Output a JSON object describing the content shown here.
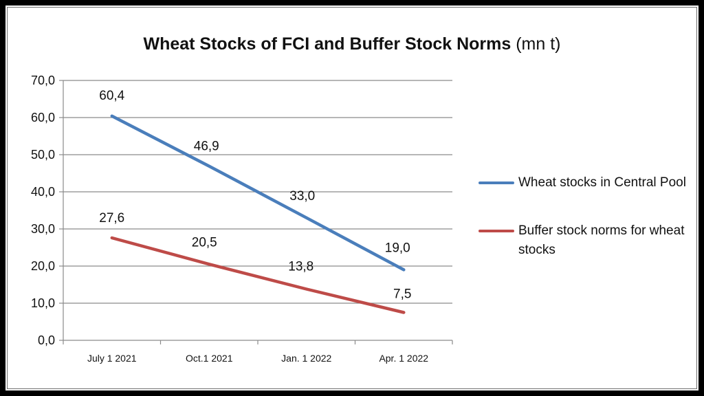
{
  "chart_data": {
    "type": "line",
    "title": "Wheat Stocks of FCI and Buffer Stock Norms",
    "title_unit": "(mn t)",
    "categories": [
      "July 1 2021",
      "Oct.1 2021",
      "Jan. 1 2022",
      "Apr. 1 2022"
    ],
    "y_ticks": [
      "0,0",
      "10,0",
      "20,0",
      "30,0",
      "40,0",
      "50,0",
      "60,0",
      "70,0"
    ],
    "ylim": [
      0,
      70
    ],
    "grid": true,
    "legend_position": "right",
    "series": [
      {
        "name": "Wheat stocks in Central Pool",
        "values": [
          60.4,
          46.9,
          33.0,
          19.0
        ],
        "labels": [
          "60,4",
          "46,9",
          "33,0",
          "19,0"
        ],
        "color": "#4a7ebb"
      },
      {
        "name": "Buffer stock norms for wheat stocks",
        "values": [
          27.6,
          20.5,
          13.8,
          7.5
        ],
        "labels": [
          "27,6",
          "20,5",
          "13,8",
          "7,5"
        ],
        "color": "#be4b48"
      }
    ]
  }
}
